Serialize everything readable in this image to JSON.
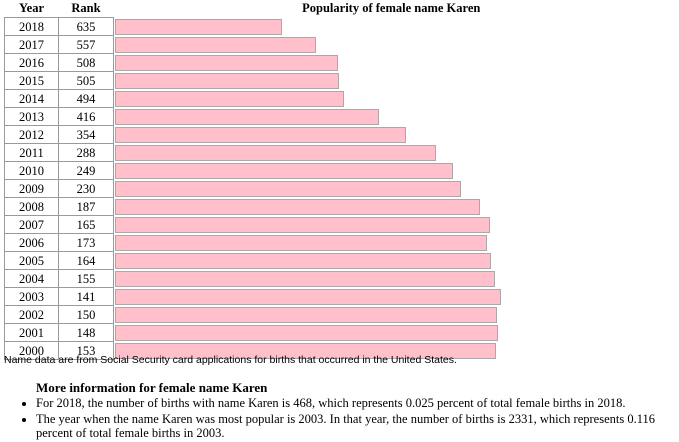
{
  "chart_data": {
    "type": "bar",
    "title": "Popularity of female name Karen",
    "columns": [
      "Year",
      "Rank"
    ],
    "categories": [
      "2018",
      "2017",
      "2016",
      "2015",
      "2014",
      "2013",
      "2012",
      "2011",
      "2010",
      "2009",
      "2008",
      "2007",
      "2006",
      "2005",
      "2004",
      "2003",
      "2002",
      "2001",
      "2000"
    ],
    "values": [
      635,
      557,
      508,
      505,
      494,
      416,
      354,
      288,
      249,
      230,
      187,
      165,
      173,
      164,
      155,
      141,
      150,
      148,
      153
    ],
    "bar_color": "#ffc0cb"
  },
  "footer": {
    "source_note": "Name data are from Social Security card applications for births that occurred in the United States.",
    "more_title": "More information for female name Karen",
    "items": [
      "For 2018, the number of births with name Karen is 468, which represents 0.025 percent of total female births in 2018.",
      "The year when the name Karen was most popular is 2003. In that year, the number of births is 2331, which represents 0.116 percent of total female births in 2003."
    ]
  }
}
